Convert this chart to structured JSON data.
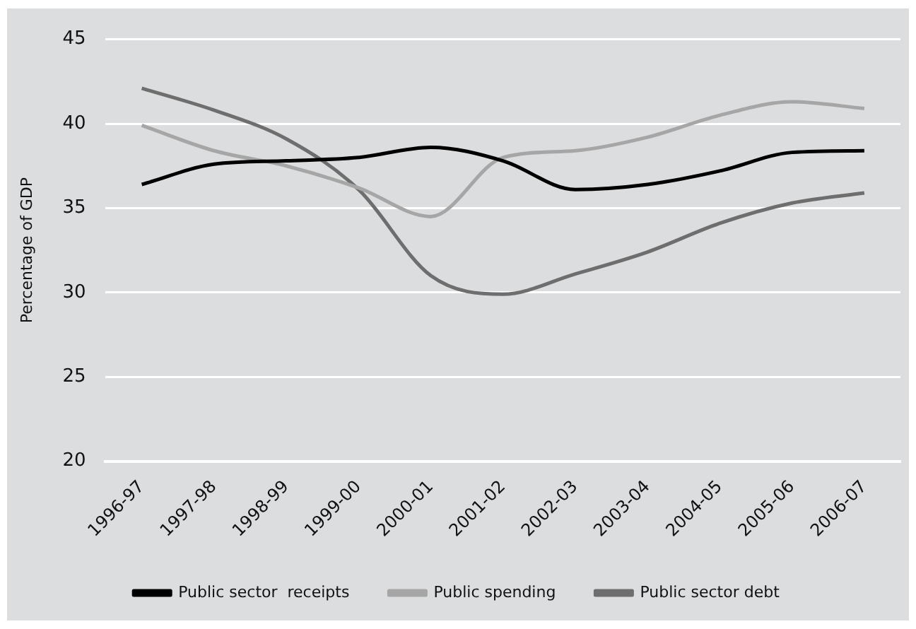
{
  "chart_data": {
    "type": "line",
    "ylabel": "Percentage of GDP",
    "categories": [
      "1996-97",
      "1997-98",
      "1998-99",
      "1999-00",
      "2000-01",
      "2001-02",
      "2002-03",
      "2003-04",
      "2004-05",
      "2005-06",
      "2006-07"
    ],
    "series": [
      {
        "name": "Public sector  receipts",
        "color": "#000000",
        "values": [
          36.4,
          37.6,
          37.8,
          38.0,
          38.6,
          37.8,
          36.1,
          36.4,
          37.2,
          38.3,
          38.4
        ]
      },
      {
        "name": "Public spending",
        "color": "#a6a6a6",
        "values": [
          39.9,
          38.4,
          37.5,
          36.2,
          34.5,
          38.0,
          38.4,
          39.2,
          40.5,
          41.3,
          40.9
        ]
      },
      {
        "name": "Public sector debt",
        "color": "#6e6e6e",
        "values": [
          42.1,
          40.8,
          39.1,
          36.1,
          31.0,
          29.9,
          31.1,
          32.4,
          34.1,
          35.3,
          35.9
        ]
      }
    ],
    "ylim": [
      20,
      45
    ],
    "yticks": [
      20,
      25,
      30,
      35,
      40,
      45
    ],
    "grid": "y",
    "legend": "bottom",
    "marker": "none"
  }
}
